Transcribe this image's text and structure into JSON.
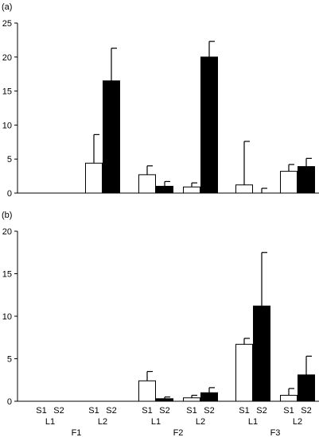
{
  "chart_data": [
    {
      "type": "bar",
      "panel_label": "(a)",
      "ylim": [
        0,
        25
      ],
      "yticks": [
        0,
        5,
        10,
        15,
        20,
        25
      ],
      "series": [
        {
          "fill": "#ffffff",
          "values": [
            0,
            4.4,
            2.7,
            0.9,
            1.2,
            3.2
          ],
          "errors": [
            0,
            4.2,
            1.3,
            0.6,
            6.4,
            1.0
          ]
        },
        {
          "fill": "#000000",
          "values": [
            0,
            16.5,
            1.0,
            20.0,
            0,
            3.9
          ],
          "errors": [
            0,
            4.8,
            0.7,
            2.3,
            0.7,
            1.2
          ]
        }
      ]
    },
    {
      "type": "bar",
      "panel_label": "(b)",
      "ylim": [
        0,
        20
      ],
      "yticks": [
        0,
        5,
        10,
        15,
        20
      ],
      "series": [
        {
          "fill": "#ffffff",
          "values": [
            0,
            0,
            2.4,
            0.4,
            6.7,
            0.7
          ],
          "errors": [
            0,
            0,
            1.1,
            0.3,
            0.7,
            0.8
          ]
        },
        {
          "fill": "#000000",
          "values": [
            0,
            0,
            0.3,
            1.0,
            11.2,
            3.1
          ],
          "errors": [
            0,
            0,
            0.2,
            0.6,
            6.3,
            2.2
          ]
        }
      ]
    }
  ],
  "x_axis": {
    "s_labels": [
      "S1",
      "S2"
    ],
    "l_labels": [
      "L1",
      "L2",
      "L1",
      "L2",
      "L1",
      "L2"
    ],
    "f_labels": [
      "F1",
      "F2",
      "F3"
    ]
  }
}
